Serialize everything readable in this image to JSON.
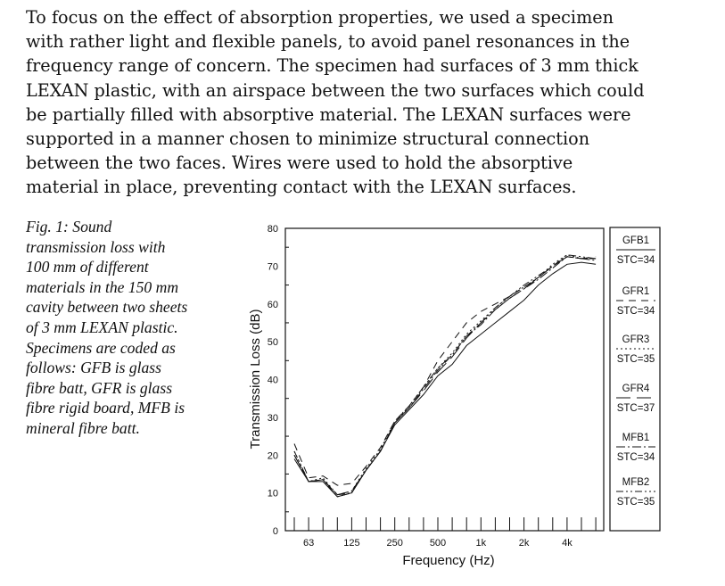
{
  "body_text": [
    "To focus on the effect of absorption properties, we used a specimen",
    "with rather light and flexible panels, to avoid panel resonances in the",
    "frequency range of concern.  The specimen had surfaces of 3 mm thick",
    "LEXAN plastic, with an airspace between the two surfaces which could",
    "be partially filled with absorptive material.  The LEXAN surfaces were",
    "supported in a manner chosen to minimize structural connection",
    "between the two faces.  Wires were used to hold the absorptive",
    "material in place, preventing contact with the LEXAN surfaces."
  ],
  "caption": [
    "Fig. 1: Sound",
    "transmission loss with",
    "100 mm of different",
    "materials in the 150 mm",
    "cavity between two sheets",
    "of 3 mm LEXAN plastic.",
    "Specimens are coded as",
    "follows:  GFB is glass",
    "fibre batt, GFR is glass",
    "fibre rigid board, MFB is",
    "mineral fibre batt."
  ],
  "chart_data": {
    "type": "line",
    "title": "",
    "xlabel": "Frequency (Hz)",
    "ylabel": "Transmission Loss (dB)",
    "ylim": [
      0,
      80
    ],
    "yticks": [
      0,
      10,
      20,
      30,
      40,
      50,
      60,
      70,
      80
    ],
    "x": [
      50,
      63,
      80,
      100,
      125,
      160,
      200,
      250,
      315,
      400,
      500,
      630,
      800,
      1000,
      1250,
      1600,
      2000,
      2500,
      3150,
      4000,
      5000,
      6300
    ],
    "xtick_labels": [
      {
        "band_index": 1,
        "label": "63"
      },
      {
        "band_index": 4,
        "label": "125"
      },
      {
        "band_index": 7,
        "label": "250"
      },
      {
        "band_index": 10,
        "label": "500"
      },
      {
        "band_index": 13,
        "label": "1k"
      },
      {
        "band_index": 16,
        "label": "2k"
      },
      {
        "band_index": 19,
        "label": "4k"
      }
    ],
    "grid": false,
    "legend_placement": "right",
    "series": [
      {
        "name": "GFB1",
        "stc": "STC=34",
        "style": "solid",
        "values": [
          19,
          13,
          13,
          9,
          10,
          16,
          21,
          28,
          32,
          36,
          41,
          44,
          49,
          52,
          55,
          58,
          61,
          65,
          68,
          70.5,
          71,
          70.5
        ]
      },
      {
        "name": "GFR1",
        "stc": "STC=34",
        "style": "dashed",
        "values": [
          23,
          14,
          14.5,
          12,
          12.5,
          17,
          22,
          29,
          33,
          38,
          45,
          50,
          55,
          58,
          60,
          62,
          64.5,
          67,
          70,
          72.5,
          72,
          72
        ]
      },
      {
        "name": "GFR3",
        "stc": "STC=35",
        "style": "dotted",
        "values": [
          21,
          13,
          14,
          9.5,
          10.5,
          16.5,
          21.5,
          29,
          33,
          38,
          43,
          47,
          52,
          55.5,
          59,
          62,
          64.5,
          67,
          70.5,
          73,
          72,
          72
        ]
      },
      {
        "name": "GFR4",
        "stc": "STC=37",
        "style": "long-dash",
        "values": [
          20,
          13,
          13.5,
          9.5,
          10.5,
          16,
          21,
          28.5,
          32.5,
          37,
          42,
          46,
          51,
          55,
          58.5,
          61.5,
          64,
          67,
          70,
          72.5,
          72,
          72.5
        ]
      },
      {
        "name": "MFB1",
        "stc": "STC=34",
        "style": "dash-dot",
        "values": [
          20,
          13,
          13.5,
          9.5,
          10,
          16,
          21,
          28.5,
          32.5,
          37.5,
          42.5,
          46.5,
          51.5,
          54.5,
          58.5,
          61.5,
          64,
          66.5,
          69.5,
          72.5,
          72,
          71.5
        ]
      },
      {
        "name": "MFB2",
        "stc": "STC=35",
        "style": "dash-dot-dot",
        "values": [
          21,
          13,
          13.5,
          9,
          10,
          16,
          21,
          28.5,
          33,
          38,
          43,
          46.5,
          51.5,
          55,
          59,
          62,
          65,
          67.5,
          70,
          73,
          72.5,
          72
        ]
      }
    ]
  }
}
